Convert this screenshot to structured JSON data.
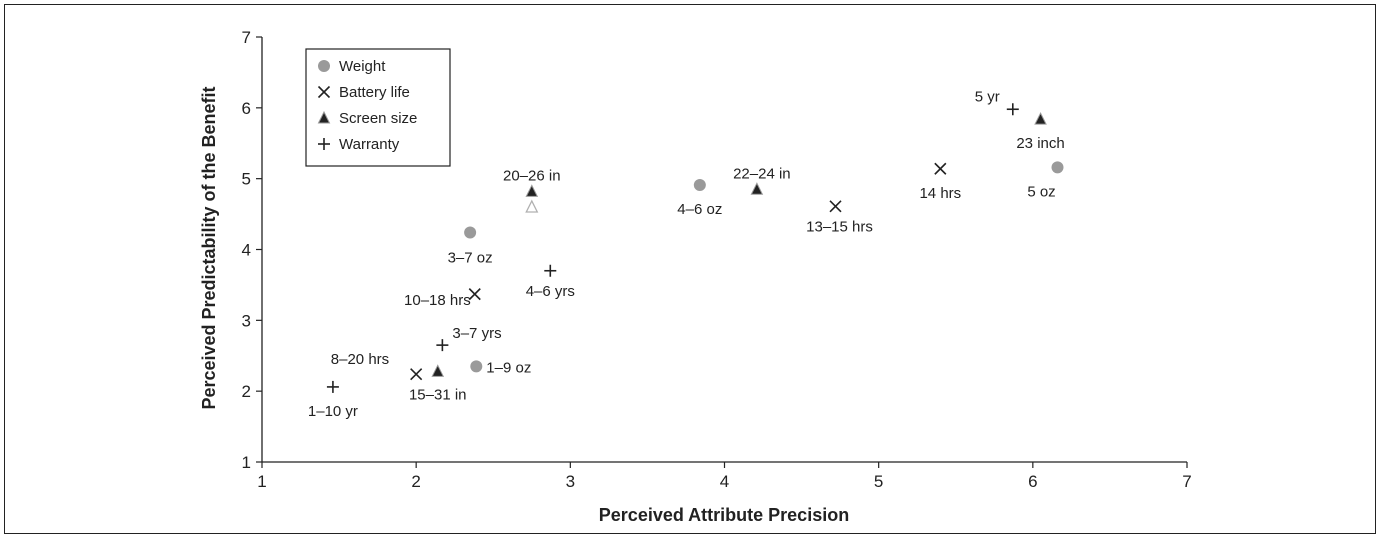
{
  "chart_data": {
    "type": "scatter",
    "title": "",
    "xlabel": "Perceived Attribute Precision",
    "ylabel": "Perceived Predictability of the Benefit",
    "xlim": [
      1,
      7
    ],
    "ylim": [
      1,
      7
    ],
    "xticks": [
      "1",
      "2",
      "3",
      "4",
      "5",
      "6",
      "7"
    ],
    "yticks": [
      "1",
      "2",
      "3",
      "4",
      "5",
      "6",
      "7"
    ],
    "grid": false,
    "legend_position": "top-left",
    "series": [
      {
        "name": "Weight",
        "marker": "circle",
        "color": "#9a9a9a",
        "points": [
          {
            "x": 2.35,
            "y": 4.24,
            "label": "3–7 oz"
          },
          {
            "x": 2.39,
            "y": 2.35,
            "label": "1–9 oz"
          },
          {
            "x": 3.84,
            "y": 4.91,
            "label": "4–6 oz"
          },
          {
            "x": 6.16,
            "y": 5.16,
            "label": "5 oz"
          }
        ]
      },
      {
        "name": "Battery life",
        "marker": "x",
        "color": "#222222",
        "points": [
          {
            "x": 2.0,
            "y": 2.24,
            "label": "8–20 hrs"
          },
          {
            "x": 2.38,
            "y": 3.37,
            "label": "10–18 hrs"
          },
          {
            "x": 4.72,
            "y": 4.61,
            "label": "13–15 hrs"
          },
          {
            "x": 5.4,
            "y": 5.14,
            "label": "14 hrs"
          }
        ]
      },
      {
        "name": "Screen size",
        "marker": "triangle",
        "color": "#222222",
        "points": [
          {
            "x": 2.14,
            "y": 2.28,
            "label": "15–31 in"
          },
          {
            "x": 2.75,
            "y": 4.82,
            "label": "20–26 in"
          },
          {
            "x": 2.75,
            "y": 4.6,
            "label": "",
            "style": "hollow"
          },
          {
            "x": 4.21,
            "y": 4.85,
            "label": "22–24 in"
          },
          {
            "x": 6.05,
            "y": 5.84,
            "label": "23 inch"
          }
        ]
      },
      {
        "name": "Warranty",
        "marker": "plus",
        "color": "#222222",
        "points": [
          {
            "x": 1.46,
            "y": 2.06,
            "label": "1–10 yr"
          },
          {
            "x": 2.17,
            "y": 2.65,
            "label": "3–7 yrs"
          },
          {
            "x": 2.87,
            "y": 3.7,
            "label": "4–6 yrs"
          },
          {
            "x": 5.87,
            "y": 5.98,
            "label": "5 yr"
          }
        ]
      }
    ]
  }
}
